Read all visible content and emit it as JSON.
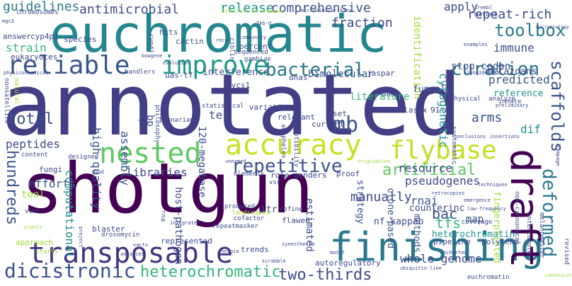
{
  "words": [
    {
      "text": "annotated",
      "color": "#433e85"
    },
    {
      "text": "shotgun",
      "color": "#440154"
    },
    {
      "text": "euchromatic",
      "color": "#24868e"
    },
    {
      "text": "finishing",
      "color": "#2a788e"
    },
    {
      "text": "transposable",
      "color": "#453581"
    },
    {
      "text": "accuracy",
      "color": "#c8e020"
    },
    {
      "text": "flybase",
      "color": "#c2df23"
    },
    {
      "text": "nested",
      "color": "#5ec962"
    },
    {
      "text": "reliable",
      "color": "#39568c"
    },
    {
      "text": "improve",
      "color": "#1f9a8a"
    },
    {
      "text": "draft",
      "color": "#440154"
    },
    {
      "text": "bacterial",
      "color": "#2a788e"
    },
    {
      "text": "curation",
      "color": "#2a788e"
    },
    {
      "text": "toolbox",
      "color": "#2a788e"
    },
    {
      "text": "scaffolds",
      "color": "#3b528b"
    },
    {
      "text": "mb",
      "color": "#3b528b"
    },
    {
      "text": "dicistronic",
      "color": "#3b528b"
    },
    {
      "text": "heterochromatic",
      "color": "#35b779"
    },
    {
      "text": "two-thirds",
      "color": "#3e4989"
    },
    {
      "text": "repetitive",
      "color": "#3b528b"
    },
    {
      "text": "total",
      "color": "#3b528b"
    },
    {
      "text": "guidelines",
      "color": "#2a788e"
    },
    {
      "text": "antimicrobial",
      "color": "#3e4989"
    },
    {
      "text": "comprehensive",
      "color": "#3b528b"
    },
    {
      "text": "fraction",
      "color": "#3e4989"
    },
    {
      "text": "release",
      "color": "#21918c"
    },
    {
      "text": "apply",
      "color": "#3e4989"
    },
    {
      "text": "repeat-rich",
      "color": "#3e4989"
    },
    {
      "text": "immune",
      "color": "#3b528b"
    },
    {
      "text": "predicted",
      "color": "#3b528b"
    },
    {
      "text": "reference",
      "color": "#21918c"
    },
    {
      "text": "deformed",
      "color": "#2a788e"
    },
    {
      "text": "artificial",
      "color": "#5ec962"
    },
    {
      "text": "manually",
      "color": "#3e4989"
    },
    {
      "text": "rnai",
      "color": "#3b528b"
    },
    {
      "text": "bac",
      "color": "#3b528b"
    },
    {
      "text": "tfs",
      "color": "#35b779"
    },
    {
      "text": "map",
      "color": "#3b528b"
    },
    {
      "text": "resource",
      "color": "#3e4989"
    },
    {
      "text": "pseudogenes",
      "color": "#3e4989"
    },
    {
      "text": "libraries",
      "color": "#3e4989"
    },
    {
      "text": "hundreds",
      "color": "#3b528b"
    },
    {
      "text": "efforts",
      "color": "#3b528b"
    },
    {
      "text": "peptides",
      "color": "#3e4989"
    },
    {
      "text": "strain",
      "color": "#35b779"
    },
    {
      "text": "computational",
      "color": "#21918c"
    },
    {
      "text": "high-quality",
      "color": "#3b528b"
    },
    {
      "text": "assembly",
      "color": "#3b528b"
    },
    {
      "text": "120-megabase",
      "color": "#3e4989"
    },
    {
      "text": "bp",
      "color": "#3b528b"
    },
    {
      "text": "tes",
      "color": "#3b528b"
    },
    {
      "text": "arms",
      "color": "#3b528b"
    },
    {
      "text": "dif",
      "color": "#21918c"
    },
    {
      "text": "metazoans",
      "color": "#3e4989"
    },
    {
      "text": "stop-codon",
      "color": "#3e4989"
    },
    {
      "text": "cytogenetic",
      "color": "#21918c"
    },
    {
      "text": "identification",
      "color": "#a0da39"
    },
    {
      "text": "interference",
      "color": "#3b528b"
    },
    {
      "text": "bimolecular",
      "color": "#3b528b"
    },
    {
      "text": "literature",
      "color": "#35b779"
    },
    {
      "text": "host-pathogen",
      "color": "#3e4989"
    },
    {
      "text": "fungal",
      "color": "#3b528b"
    },
    {
      "text": "heterochromatin",
      "color": "#21918c"
    },
    {
      "text": "whole-genome",
      "color": "#3e4989"
    },
    {
      "text": "nf-kappab",
      "color": "#3e4989"
    },
    {
      "text": "counterinc",
      "color": "#3e4989"
    },
    {
      "text": "fingerprinted",
      "color": "#a0da39"
    },
    {
      "text": "clone-based",
      "color": "#3b528b"
    },
    {
      "text": "estimated",
      "color": "#3e4989"
    },
    {
      "text": "strategy",
      "color": "#3b528b"
    },
    {
      "text": "methods",
      "color": "#3b528b"
    },
    {
      "text": "ltr",
      "color": "#3e4989"
    },
    {
      "text": "cactin",
      "color": "#3b528b"
    },
    {
      "text": "hits",
      "color": "#3b528b"
    },
    {
      "text": "mycs1",
      "color": "#3e4989"
    },
    {
      "text": "eukaryotes",
      "color": "#3e4989"
    },
    {
      "text": "answer",
      "color": "#3e4989"
    },
    {
      "text": "cyp4p2",
      "color": "#3e4989"
    },
    {
      "text": "chromosomes",
      "color": "#3e4989"
    },
    {
      "text": "uas-tf",
      "color": "#3e4989"
    },
    {
      "text": "handlers",
      "color": "#3e4989"
    },
    {
      "text": "species",
      "color": "#3e4989"
    },
    {
      "text": "percent",
      "color": "#3b528b"
    },
    {
      "text": "sequenced",
      "color": "#3e4989"
    },
    {
      "text": "gambiae",
      "color": "#3e4989"
    },
    {
      "text": "jaspar",
      "color": "#3e4989"
    },
    {
      "text": "dnas",
      "color": "#3e4989"
    },
    {
      "text": "tblastx",
      "color": "#3e4989"
    },
    {
      "text": "91-c",
      "color": "#3e4989"
    },
    {
      "text": "innate",
      "color": "#3e4989"
    },
    {
      "text": "tool",
      "color": "#a0da39"
    },
    {
      "text": "fungi",
      "color": "#3e4989"
    },
    {
      "text": "content",
      "color": "#3e4989"
    },
    {
      "text": "approach",
      "color": "#a0da39"
    },
    {
      "text": "designed",
      "color": "#3e4989"
    },
    {
      "text": "vinr",
      "color": "#3e4989"
    },
    {
      "text": "rna",
      "color": "#3e4989"
    },
    {
      "text": "blaster",
      "color": "#3e4989"
    },
    {
      "text": "drosomycin",
      "color": "#3e4989"
    },
    {
      "text": "represented",
      "color": "#3e4989"
    },
    {
      "text": "repeatmasker",
      "color": "#3e4989"
    },
    {
      "text": "cofactor",
      "color": "#3e4989"
    },
    {
      "text": "trends",
      "color": "#3e4989"
    },
    {
      "text": "autoregulatory",
      "color": "#3e4989"
    },
    {
      "text": "pipeline",
      "color": "#3e4989"
    },
    {
      "text": "polytene",
      "color": "#3e4989"
    },
    {
      "text": "euchromatin",
      "color": "#3e4989"
    },
    {
      "text": "melanogaster",
      "color": "#3e4989"
    },
    {
      "text": "intercomplex",
      "color": "#3e4989"
    },
    {
      "text": "non-cannonical",
      "color": "#3e4989"
    },
    {
      "text": "revised",
      "color": "#3e4989"
    },
    {
      "text": "coverage",
      "color": "#3e4989"
    },
    {
      "text": "produced",
      "color": "#3e4989"
    },
    {
      "text": "flawed",
      "color": "#3e4989"
    },
    {
      "text": "refine",
      "color": "#3e4989"
    },
    {
      "text": "landscapes",
      "color": "#a0da39"
    },
    {
      "text": "elements",
      "color": "#3e4989"
    },
    {
      "text": "role-genders",
      "color": "#3e4989"
    },
    {
      "text": "vsr",
      "color": "#3e4989"
    },
    {
      "text": "proof",
      "color": "#3e4989"
    },
    {
      "text": "variation",
      "color": "#3e4989"
    },
    {
      "text": "relevant",
      "color": "#3e4989"
    },
    {
      "text": "current",
      "color": "#3e4989"
    },
    {
      "text": "set",
      "color": "#3e4989"
    },
    {
      "text": "statistical",
      "color": "#3e4989"
    },
    {
      "text": "planarian",
      "color": "#3e4989"
    },
    {
      "text": "philosophy",
      "color": "#3e4989"
    },
    {
      "text": "anopheles",
      "color": "#3e4989"
    },
    {
      "text": "susceptibility",
      "color": "#3e4989"
    },
    {
      "text": "nonsatellite",
      "color": "#3e4989"
    },
    {
      "text": "ciblin",
      "color": "#3e4989"
    },
    {
      "text": "physical",
      "color": "#3e4989"
    },
    {
      "text": "systematic",
      "color": "#3e4989"
    },
    {
      "text": "analyze",
      "color": "#3e4989"
    },
    {
      "text": "natural",
      "color": "#a0da39"
    },
    {
      "text": "mitomi",
      "color": "#3e4989"
    },
    {
      "text": "microbiology",
      "color": "#3e4989"
    },
    {
      "text": "alpha2delta3",
      "color": "#3e4989"
    },
    {
      "text": "dalphd",
      "color": "#3e4989"
    },
    {
      "text": "trembl",
      "color": "#3e4989"
    },
    {
      "text": "cyp4j",
      "color": "#3e4989"
    },
    {
      "text": "evolution",
      "color": "#3e4989"
    },
    {
      "text": "community",
      "color": "#3e4989"
    },
    {
      "text": "recon",
      "color": "#3e4989"
    },
    {
      "text": "microsimilarities",
      "color": "#3e4989"
    },
    {
      "text": "gapc",
      "color": "#3e4989"
    },
    {
      "text": "motif",
      "color": "#3e4989"
    },
    {
      "text": "synesthesia",
      "color": "#3e4989"
    },
    {
      "text": "scrabble",
      "color": "#3e4989"
    },
    {
      "text": "advances",
      "color": "#3e4989"
    },
    {
      "text": "energia",
      "color": "#3e4989"
    },
    {
      "text": "challenger",
      "color": "#3e4989"
    },
    {
      "text": "mgs3",
      "color": "#3e4989"
    },
    {
      "text": "ubiquitin-like",
      "color": "#3e4989"
    },
    {
      "text": "uncharted",
      "color": "#3e4989"
    },
    {
      "text": "low-frequency",
      "color": "#3e4989"
    },
    {
      "text": "retrocopies",
      "color": "#3e4989"
    },
    {
      "text": "emergence",
      "color": "#3e4989"
    },
    {
      "text": "examples",
      "color": "#3e4989"
    },
    {
      "text": "conclusions",
      "color": "#3e4989"
    },
    {
      "text": "insertions",
      "color": "#3e4989"
    },
    {
      "text": "preliminary",
      "color": "#3e4989"
    },
    {
      "text": "starts",
      "color": "#a0da39"
    },
    {
      "text": "plants",
      "color": "#a0da39"
    },
    {
      "text": "project",
      "color": "#3e4989"
    },
    {
      "text": "rampage",
      "color": "#3e4989"
    },
    {
      "text": "techniques",
      "color": "#3e4989"
    },
    {
      "text": "canonical",
      "color": "#a0da39"
    },
    {
      "text": "integrated",
      "color": "#3e4989"
    },
    {
      "text": "origination",
      "color": "#a0da39"
    },
    {
      "text": "unnamed",
      "color": "#3e4989"
    },
    {
      "text": "dyad",
      "color": "#3e4989"
    },
    {
      "text": "bowgene",
      "color": "#3e4989"
    },
    {
      "text": "vacto",
      "color": "#3e4989"
    },
    {
      "text": "physicochemical",
      "color": "#3e4989"
    },
    {
      "text": "difficult-to-sequence",
      "color": "#a0da39"
    },
    {
      "text": "7kb-d",
      "color": "#3e4989"
    }
  ]
}
